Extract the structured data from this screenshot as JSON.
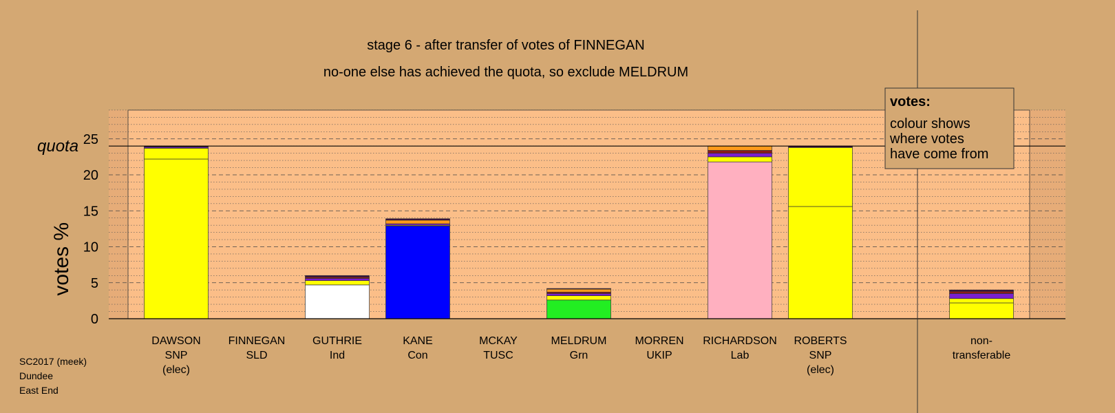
{
  "footer": {
    "lines": [
      "SC2017 (meek)",
      "Dundee",
      "East End"
    ]
  },
  "chart_data": {
    "type": "bar",
    "stacked": true,
    "title": "stage 6 - after transfer of votes of FINNEGAN",
    "subtitle": "no-one else has achieved the quota, so exclude MELDRUM",
    "ylabel": "votes %",
    "ylim": [
      0,
      29
    ],
    "yticks": [
      0,
      5,
      10,
      15,
      20,
      25
    ],
    "quota": 24.0,
    "quota_label": "quota",
    "grid": "dashed horizontal every 5, dotted every 1",
    "legend": {
      "placement": "top-right",
      "title": "votes:",
      "lines": [
        "colour shows",
        "where votes",
        "have come from"
      ]
    },
    "colors": {
      "SNP": "#ffff00",
      "Ind": "#ffffff",
      "Con": "#0000ff",
      "Grn": "#22ee22",
      "Lab": "#ffb0c0",
      "SLD": "#ff9a1a",
      "TUSC": "#8b1a1a",
      "UKIP": "#7a1fd0",
      "dark": "#3a0a40"
    },
    "candidates": [
      {
        "name": "DAWSON",
        "party": "SNP",
        "note": "(elec)",
        "segments": [
          {
            "source": "SNP",
            "value": 22.2
          },
          {
            "source": "SNP",
            "value": 1.5
          },
          {
            "source": "UKIP",
            "value": 0.15
          },
          {
            "source": "dark",
            "value": 0.15
          }
        ]
      },
      {
        "name": "FINNEGAN",
        "party": "SLD",
        "note": "",
        "segments": []
      },
      {
        "name": "GUTHRIE",
        "party": "Ind",
        "note": "",
        "segments": [
          {
            "source": "Ind",
            "value": 4.7
          },
          {
            "source": "SNP",
            "value": 0.6
          },
          {
            "source": "UKIP",
            "value": 0.3
          },
          {
            "source": "TUSC",
            "value": 0.2
          },
          {
            "source": "dark",
            "value": 0.2
          }
        ]
      },
      {
        "name": "KANE",
        "party": "Con",
        "note": "",
        "segments": [
          {
            "source": "Con",
            "value": 12.9
          },
          {
            "source": "SNP",
            "value": 0.1
          },
          {
            "source": "UKIP",
            "value": 0.2
          },
          {
            "source": "SLD",
            "value": 0.5
          },
          {
            "source": "dark",
            "value": 0.2
          }
        ]
      },
      {
        "name": "MCKAY",
        "party": "TUSC",
        "note": "",
        "segments": []
      },
      {
        "name": "MELDRUM",
        "party": "Grn",
        "note": "",
        "segments": [
          {
            "source": "Grn",
            "value": 2.6
          },
          {
            "source": "SNP",
            "value": 0.6
          },
          {
            "source": "UKIP",
            "value": 0.3
          },
          {
            "source": "TUSC",
            "value": 0.2
          },
          {
            "source": "SLD",
            "value": 0.4
          },
          {
            "source": "dark",
            "value": 0.1
          }
        ]
      },
      {
        "name": "MORREN",
        "party": "UKIP",
        "note": "",
        "segments": []
      },
      {
        "name": "RICHARDSON",
        "party": "Lab",
        "note": "",
        "segments": [
          {
            "source": "Lab",
            "value": 21.8
          },
          {
            "source": "SNP",
            "value": 0.7
          },
          {
            "source": "UKIP",
            "value": 0.5
          },
          {
            "source": "TUSC",
            "value": 0.4
          },
          {
            "source": "SLD",
            "value": 0.6
          }
        ]
      },
      {
        "name": "ROBERTS",
        "party": "SNP",
        "note": "(elec)",
        "segments": [
          {
            "source": "SNP",
            "value": 15.6
          },
          {
            "source": "SNP",
            "value": 8.2
          },
          {
            "source": "dark",
            "value": 0.2
          }
        ]
      }
    ],
    "nontransferable": {
      "label_lines": [
        "non-",
        "transferable"
      ],
      "segments": [
        {
          "source": "SNP",
          "value": 2.2
        },
        {
          "source": "SNP",
          "value": 0.6
        },
        {
          "source": "UKIP",
          "value": 0.7
        },
        {
          "source": "TUSC",
          "value": 0.3
        },
        {
          "source": "dark",
          "value": 0.2
        }
      ]
    }
  }
}
